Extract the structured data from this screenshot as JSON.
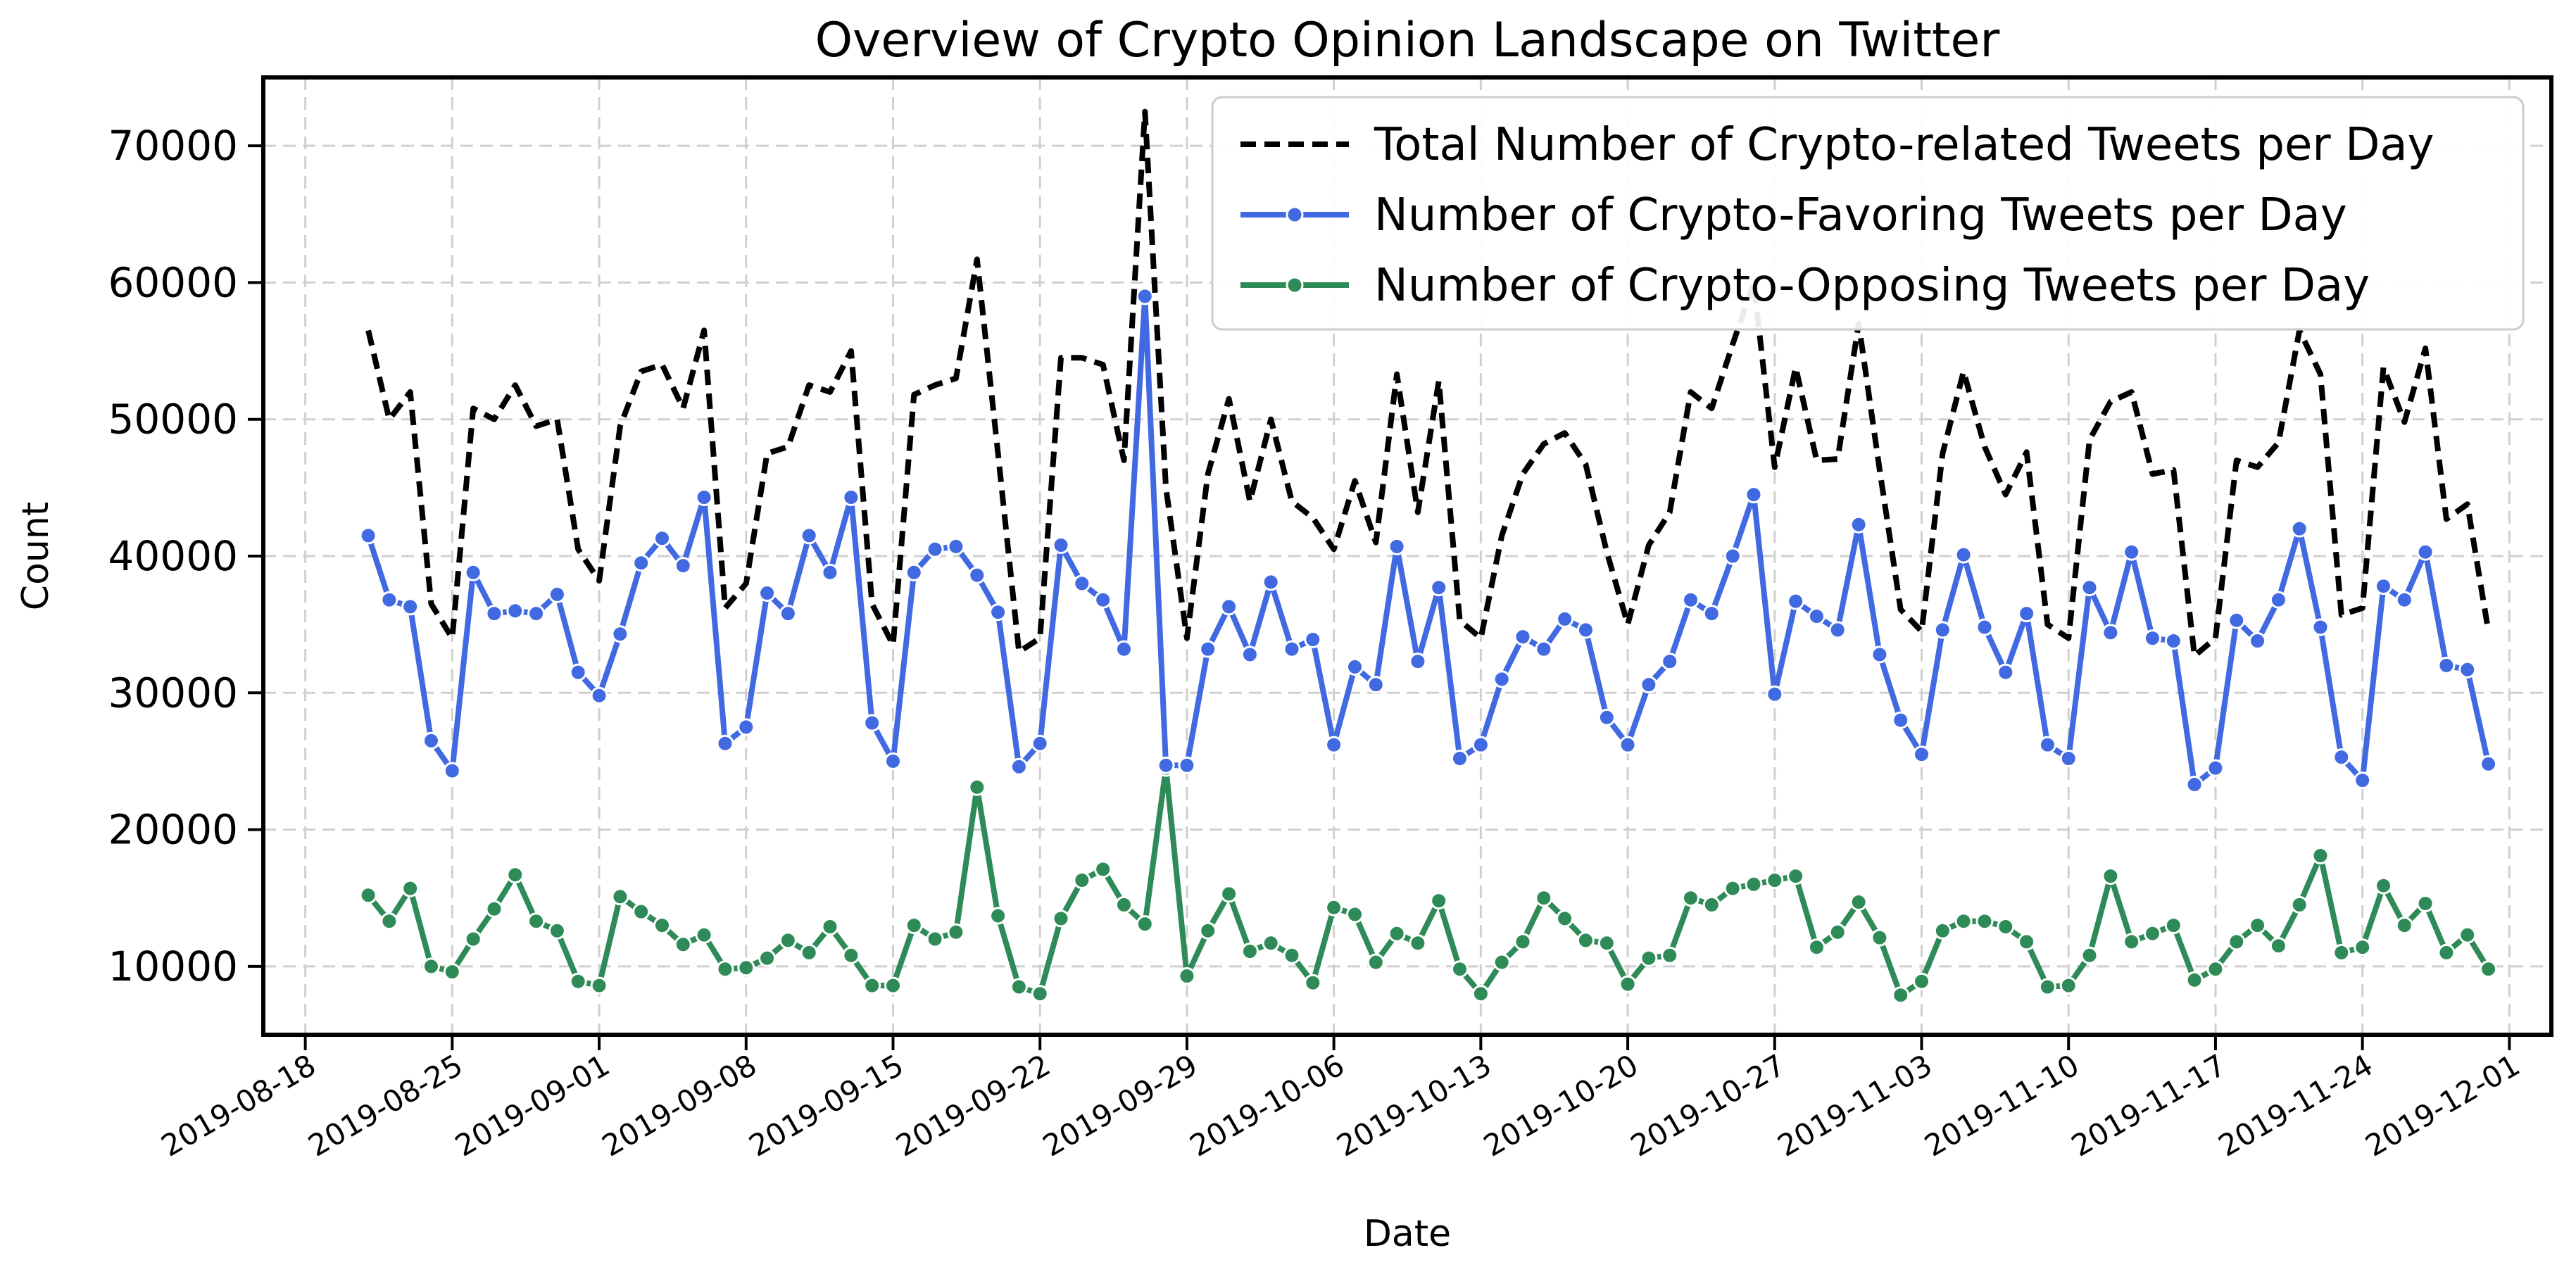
{
  "chart_data": {
    "type": "line",
    "title": "Overview of Crypto Opinion Landscape on Twitter",
    "xlabel": "Date",
    "ylabel": "Count",
    "ylim": [
      5000,
      75000
    ],
    "xlim": [
      "2019-08-16",
      "2019-12-03"
    ],
    "grid": true,
    "legend_position": "top-right",
    "x_ticks": [
      "2019-08-18",
      "2019-08-25",
      "2019-09-01",
      "2019-09-08",
      "2019-09-15",
      "2019-09-22",
      "2019-09-29",
      "2019-10-06",
      "2019-10-13",
      "2019-10-20",
      "2019-10-27",
      "2019-11-03",
      "2019-11-10",
      "2019-11-17",
      "2019-11-24",
      "2019-12-01"
    ],
    "y_ticks": [
      10000,
      20000,
      30000,
      40000,
      50000,
      60000,
      70000
    ],
    "y_tick_labels": [
      "10000",
      "20000",
      "30000",
      "40000",
      "50000",
      "60000",
      "70000"
    ],
    "x": [
      "2019-08-21",
      "2019-08-22",
      "2019-08-23",
      "2019-08-24",
      "2019-08-25",
      "2019-08-26",
      "2019-08-27",
      "2019-08-28",
      "2019-08-29",
      "2019-08-30",
      "2019-08-31",
      "2019-09-01",
      "2019-09-02",
      "2019-09-03",
      "2019-09-04",
      "2019-09-05",
      "2019-09-06",
      "2019-09-07",
      "2019-09-08",
      "2019-09-09",
      "2019-09-10",
      "2019-09-11",
      "2019-09-12",
      "2019-09-13",
      "2019-09-14",
      "2019-09-15",
      "2019-09-16",
      "2019-09-17",
      "2019-09-18",
      "2019-09-19",
      "2019-09-20",
      "2019-09-21",
      "2019-09-22",
      "2019-09-23",
      "2019-09-24",
      "2019-09-25",
      "2019-09-26",
      "2019-09-27",
      "2019-09-28",
      "2019-09-29",
      "2019-09-30",
      "2019-10-01",
      "2019-10-02",
      "2019-10-03",
      "2019-10-04",
      "2019-10-05",
      "2019-10-06",
      "2019-10-07",
      "2019-10-08",
      "2019-10-09",
      "2019-10-10",
      "2019-10-11",
      "2019-10-12",
      "2019-10-13",
      "2019-10-14",
      "2019-10-15",
      "2019-10-16",
      "2019-10-17",
      "2019-10-18",
      "2019-10-19",
      "2019-10-20",
      "2019-10-21",
      "2019-10-22",
      "2019-10-23",
      "2019-10-24",
      "2019-10-25",
      "2019-10-26",
      "2019-10-27",
      "2019-10-28",
      "2019-10-29",
      "2019-10-30",
      "2019-10-31",
      "2019-11-01",
      "2019-11-02",
      "2019-11-03",
      "2019-11-04",
      "2019-11-05",
      "2019-11-06",
      "2019-11-07",
      "2019-11-08",
      "2019-11-09",
      "2019-11-10",
      "2019-11-11",
      "2019-11-12",
      "2019-11-13",
      "2019-11-14",
      "2019-11-15",
      "2019-11-16",
      "2019-11-17",
      "2019-11-18",
      "2019-11-19",
      "2019-11-20",
      "2019-11-21",
      "2019-11-22",
      "2019-11-23",
      "2019-11-24",
      "2019-11-25",
      "2019-11-26",
      "2019-11-27",
      "2019-11-28",
      "2019-11-29",
      "2019-11-30"
    ],
    "series": [
      {
        "name": "Total Number of Crypto-related Tweets per Day",
        "color": "#000000",
        "line_style": "dashed",
        "marker": "none",
        "values": [
          56500,
          50000,
          52000,
          36500,
          34000,
          50800,
          50000,
          52500,
          49500,
          50000,
          40500,
          38200,
          49500,
          53500,
          54000,
          50800,
          56500,
          36200,
          38000,
          47500,
          48000,
          52500,
          52000,
          55000,
          36500,
          33500,
          51800,
          52500,
          53000,
          61700,
          47500,
          33000,
          34000,
          54500,
          54500,
          54000,
          47000,
          72500,
          45000,
          34000,
          46000,
          51500,
          44000,
          50000,
          44000,
          42800,
          40500,
          45500,
          41000,
          53300,
          43200,
          52800,
          35300,
          34000,
          41500,
          46000,
          48200,
          49000,
          46700,
          40300,
          35000,
          40800,
          43200,
          52000,
          50800,
          55500,
          60000,
          46500,
          53800,
          47000,
          47100,
          57000,
          46300,
          36100,
          34500,
          47500,
          53500,
          48000,
          44500,
          47600,
          35000,
          34000,
          48500,
          51300,
          52000,
          46000,
          46300,
          32700,
          34000,
          47000,
          46500,
          48300,
          56500,
          53300,
          35700,
          36200,
          53800,
          49800,
          55200,
          42700,
          43800,
          34500
        ]
      },
      {
        "name": "Number of Crypto-Favoring Tweets per Day",
        "color": "#4169E1",
        "line_style": "solid",
        "marker": "circle",
        "values": [
          41500,
          36800,
          36300,
          26500,
          24300,
          38800,
          35800,
          36000,
          35800,
          37200,
          31500,
          29800,
          34300,
          39500,
          41300,
          39300,
          44300,
          26300,
          27500,
          37300,
          35800,
          41500,
          38800,
          44300,
          27800,
          25000,
          38800,
          40500,
          40700,
          38600,
          35900,
          24600,
          26300,
          40800,
          38000,
          36800,
          33200,
          59000,
          24700,
          24700,
          33200,
          36300,
          32800,
          38100,
          33200,
          33900,
          26200,
          31900,
          30600,
          40700,
          32300,
          37700,
          25200,
          26200,
          31000,
          34100,
          33200,
          35400,
          34600,
          28200,
          26200,
          30600,
          32300,
          36800,
          35800,
          40000,
          44500,
          29900,
          36700,
          35600,
          34600,
          42300,
          32800,
          28000,
          25500,
          34600,
          40100,
          34800,
          31500,
          35800,
          26200,
          25200,
          37700,
          34400,
          40300,
          34000,
          33800,
          23300,
          24500,
          35300,
          33800,
          36800,
          42000,
          34800,
          25300,
          23600,
          37800,
          36800,
          40300,
          32000,
          31700,
          24800
        ]
      },
      {
        "name": "Number of Crypto-Opposing Tweets per Day",
        "color": "#2E8B57",
        "line_style": "solid",
        "marker": "circle",
        "values": [
          15200,
          13300,
          15700,
          10000,
          9600,
          12000,
          14200,
          16700,
          13300,
          12600,
          8900,
          8600,
          15100,
          14000,
          13000,
          11600,
          12300,
          9800,
          9900,
          10600,
          11900,
          11000,
          12900,
          10800,
          8600,
          8600,
          13000,
          12000,
          12500,
          23100,
          13700,
          8500,
          8000,
          13500,
          16300,
          17100,
          14500,
          13100,
          24500,
          9300,
          12600,
          15300,
          11100,
          11700,
          10800,
          8800,
          14300,
          13800,
          10300,
          12400,
          11700,
          14800,
          9800,
          8000,
          10300,
          11800,
          15000,
          13500,
          11900,
          11700,
          8700,
          10600,
          10800,
          15000,
          14500,
          15700,
          16000,
          16300,
          16600,
          11400,
          12500,
          14700,
          12100,
          7900,
          8900,
          12600,
          13300,
          13300,
          12900,
          11800,
          8500,
          8600,
          10800,
          16600,
          11800,
          12400,
          13000,
          9000,
          9800,
          11800,
          13000,
          11500,
          14500,
          18100,
          11000,
          11400,
          15900,
          13000,
          14600,
          11000,
          12300,
          9800
        ]
      }
    ]
  }
}
